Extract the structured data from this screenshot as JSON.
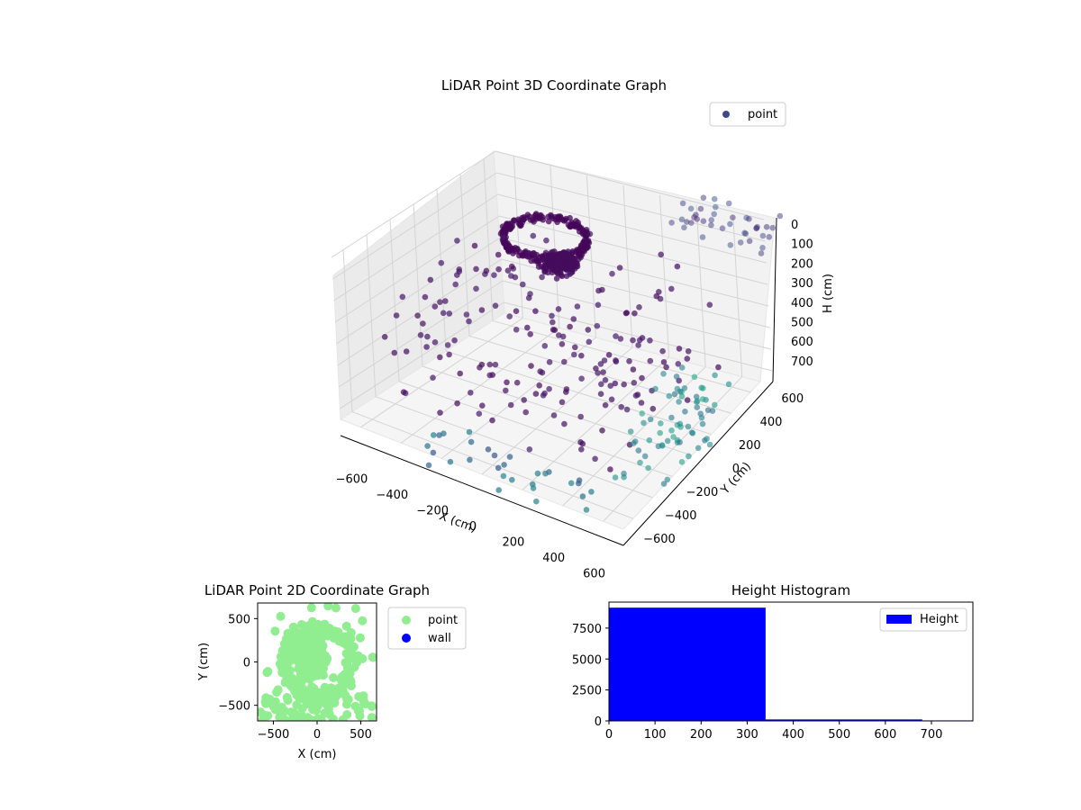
{
  "chart_data": [
    {
      "type": "scatter",
      "projection": "3d",
      "title": "LiDAR Point 3D Coordinate Graph",
      "xlabel": "X (cm)",
      "ylabel": "Y (cm)",
      "zlabel": "H (cm)",
      "xlim": [
        -700,
        700
      ],
      "ylim": [
        -700,
        700
      ],
      "zlim": [
        0,
        750
      ],
      "z_inverted": true,
      "xticks": [
        "−600",
        "−400",
        "−200",
        "0",
        "200",
        "400",
        "600"
      ],
      "yticks": [
        "−600",
        "−400",
        "−200",
        "0",
        "200",
        "400",
        "600"
      ],
      "zticks": [
        "0",
        "100",
        "200",
        "300",
        "400",
        "500",
        "600",
        "700"
      ],
      "legend": {
        "entries": [
          "point"
        ],
        "placement": "top-right"
      },
      "colormap": "viridis",
      "grid": true
    },
    {
      "type": "scatter",
      "title": "LiDAR Point 2D Coordinate Graph",
      "xlabel": "X (cm)",
      "ylabel": "Y (cm)",
      "xlim": [
        -680,
        680
      ],
      "ylim": [
        -680,
        680
      ],
      "xticks": [
        "−500",
        "0",
        "500"
      ],
      "yticks": [
        "−500",
        "0",
        "500"
      ],
      "series": [
        {
          "name": "point",
          "color": "#90ee90"
        },
        {
          "name": "wall",
          "color": "#0000ff"
        }
      ],
      "legend": {
        "placement": "outside-right"
      }
    },
    {
      "type": "bar",
      "title": "Height Histogram",
      "bins": [
        [
          0,
          340
        ],
        [
          340,
          680
        ],
        [
          680,
          790
        ]
      ],
      "values": [
        9150,
        120,
        40
      ],
      "xlim": [
        0,
        790
      ],
      "ylim": [
        0,
        9600
      ],
      "xticks": [
        "0",
        "100",
        "200",
        "300",
        "400",
        "500",
        "600",
        "700"
      ],
      "yticks": [
        "0",
        "2500",
        "5000",
        "7500"
      ],
      "series": [
        {
          "name": "Height",
          "color": "#0000ff"
        }
      ],
      "legend": {
        "placement": "top-right"
      }
    }
  ]
}
